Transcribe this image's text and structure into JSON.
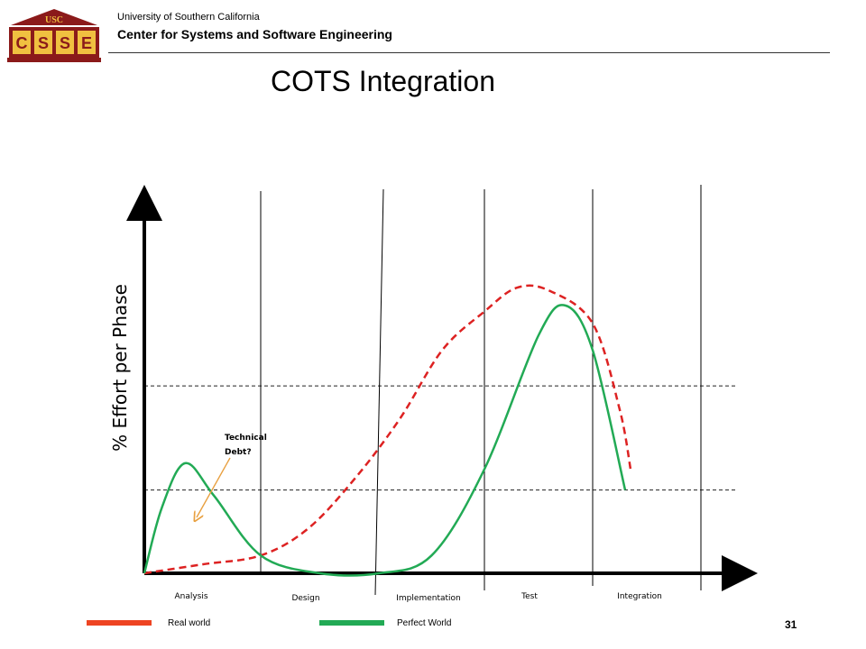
{
  "header": {
    "logo_top_text": "USC",
    "logo_letters": [
      "C",
      "S",
      "S",
      "E"
    ],
    "org_line1": "University of Southern California",
    "org_line2": "Center for Systems and Software Engineering"
  },
  "slide": {
    "title": "COTS Integration",
    "page_number": "31"
  },
  "chart_data": {
    "type": "line",
    "title": "COTS Integration",
    "ylabel": "% Effort per Phase",
    "xlabel": "",
    "categories": [
      "Analysis",
      "Design",
      "Implementation",
      "Test",
      "Integration"
    ],
    "series": [
      {
        "name": "Real world",
        "color": "#dd2222",
        "style": "dashed",
        "points": [
          [
            0.0,
            0.0
          ],
          [
            0.5,
            0.03
          ],
          [
            1.0,
            0.06
          ],
          [
            1.4,
            0.15
          ],
          [
            1.8,
            0.32
          ],
          [
            2.2,
            0.52
          ],
          [
            2.6,
            0.75
          ],
          [
            3.0,
            0.88
          ],
          [
            3.3,
            0.96
          ],
          [
            3.6,
            0.95
          ],
          [
            4.0,
            0.84
          ],
          [
            4.25,
            0.55
          ],
          [
            4.35,
            0.35
          ]
        ]
      },
      {
        "name": "Perfect World",
        "color": "#22aa55",
        "style": "solid",
        "points": [
          [
            0.0,
            0.0
          ],
          [
            0.15,
            0.22
          ],
          [
            0.35,
            0.37
          ],
          [
            0.6,
            0.26
          ],
          [
            1.0,
            0.06
          ],
          [
            1.5,
            0.0
          ],
          [
            2.0,
            0.0
          ],
          [
            2.5,
            0.06
          ],
          [
            3.0,
            0.35
          ],
          [
            3.5,
            0.8
          ],
          [
            3.75,
            0.9
          ],
          [
            4.0,
            0.75
          ],
          [
            4.3,
            0.28
          ]
        ]
      }
    ],
    "reference_lines": [
      0.28,
      0.63
    ],
    "annotation": {
      "text_line1": "Technical",
      "text_line2": "Debt?",
      "color": "#e8a040"
    },
    "legend": [
      {
        "label": "Real world",
        "color": "#ee4422"
      },
      {
        "label": "Perfect World",
        "color": "#22aa55"
      }
    ]
  }
}
